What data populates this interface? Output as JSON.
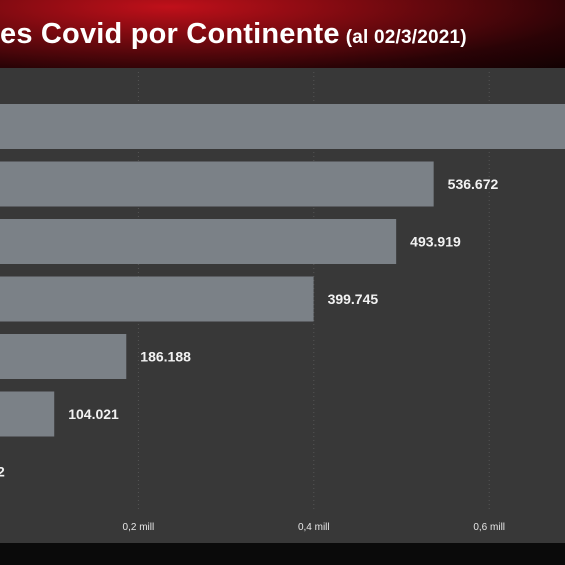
{
  "title": {
    "main": "es Covid por Continente",
    "date": "(al 02/3/2021)"
  },
  "colors": {
    "bar": "#7b8187",
    "background": "#383838",
    "header": "#8a0b12"
  },
  "chart_data": {
    "type": "bar",
    "orientation": "horizontal",
    "title": "es Covid por Continente (al 02/3/2021)",
    "xlabel": "",
    "ylabel": "",
    "xlim": [
      0,
      0.72
    ],
    "xticks": [
      {
        "value": 0.2,
        "label": "0,2 mill"
      },
      {
        "value": 0.4,
        "label": "0,4 mill"
      },
      {
        "value": 0.6,
        "label": "0,6 mill"
      }
    ],
    "grid": true,
    "values": [
      0.72,
      0.536672,
      0.493919,
      0.399745,
      0.186188,
      0.104021,
      0.0
    ],
    "labels": [
      "",
      "536.672",
      "493.919",
      "399.745",
      "186.188",
      "104.021",
      "2"
    ]
  }
}
